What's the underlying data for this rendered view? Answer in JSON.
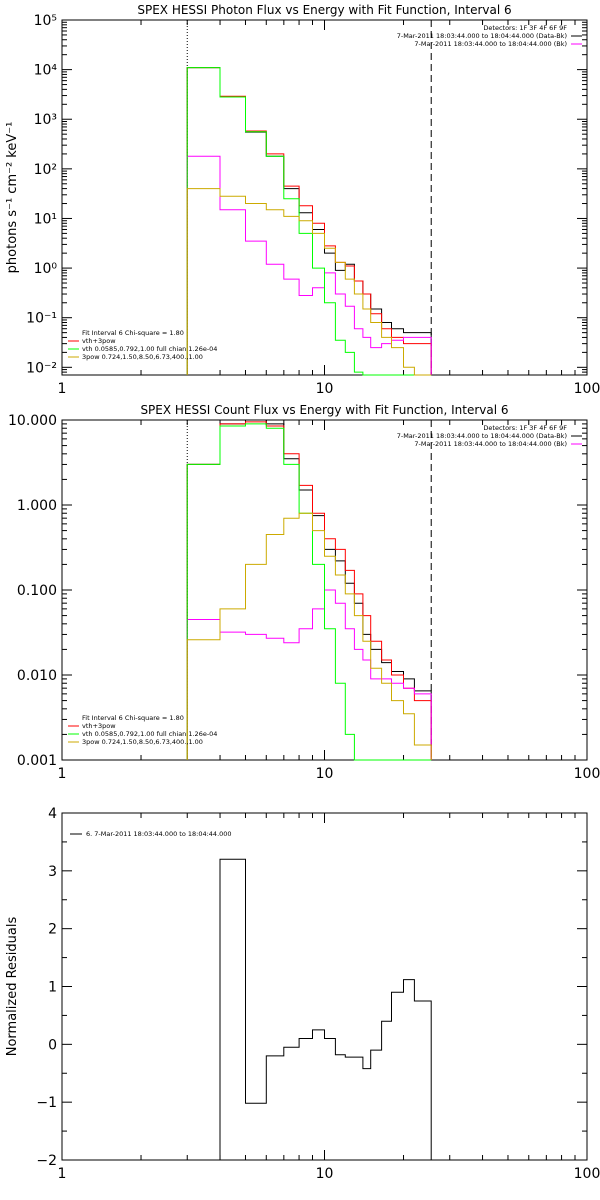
{
  "chart_data": [
    {
      "type": "line",
      "title": "SPEX HESSI Photon Flux vs Energy with Fit Function, Interval 6",
      "ylabel": "photons s⁻¹ cm⁻² keV⁻¹",
      "xlabel": "",
      "xscale": "log",
      "yscale": "log",
      "xlim": [
        1,
        100
      ],
      "ylim": [
        0.007,
        100000
      ],
      "xticks": [
        1,
        10,
        100
      ],
      "xtick_labels": [
        "1",
        "10",
        "100"
      ],
      "yticks": [
        0.01,
        0.1,
        1,
        10,
        100,
        1000,
        10000,
        100000
      ],
      "ytick_labels": [
        "10⁻²",
        "10⁻¹",
        "10⁰",
        "10¹",
        "10²",
        "10³",
        "10⁴",
        "10⁵"
      ],
      "vlines": [
        {
          "x": 3.0,
          "style": "dotted"
        },
        {
          "x": 25.5,
          "style": "dashed"
        }
      ],
      "legend_top": [
        "Detectors: 1F 3F 4F 6F 9F",
        "7-Mar-2011 18:03:44.000 to 18:04:44.000 (Data-Bk)",
        "7-Mar-2011 18:03:44.000 to 18:04:44.000 (Bk)"
      ],
      "legend_bottom": [
        "Fit Interval 6   Chi-square = 1.80",
        "vth+3pow",
        "vth 0.0585,0.792,1.00  full chian 1.26e-04",
        "3pow 0.724,1.50,8.50,6.73,400.,1.00"
      ],
      "edges": [
        3.0,
        4.0,
        5.0,
        6.0,
        7.0,
        8.0,
        9.0,
        10.0,
        11.0,
        12.0,
        13.0,
        14.0,
        15.0,
        16.5,
        18.0,
        20.0,
        22.0,
        25.5
      ],
      "series": [
        {
          "name": "7-Mar-2011 18:03:44.000 to 18:04:44.000 (Data-Bk)",
          "color": "#000000",
          "values": [
            11000,
            2800,
            550,
            180,
            40,
            13,
            6,
            2.0,
            0.9,
            1.2,
            0.55,
            0.3,
            0.15,
            0.08,
            0.06,
            0.05,
            0.05
          ]
        },
        {
          "name": "vth+3pow",
          "color": "#ff0000",
          "values": [
            11000,
            2900,
            580,
            200,
            45,
            18,
            8,
            2.8,
            1.3,
            1.1,
            0.55,
            0.3,
            0.12,
            0.06,
            0.04,
            0.03,
            0.03
          ]
        },
        {
          "name": "7-Mar-2011 18:03:44.000 to 18:04:44.000 (Bk)",
          "color": "#ff00ff",
          "values": [
            180,
            15,
            3.5,
            1.2,
            0.6,
            0.28,
            0.4,
            0.8,
            0.3,
            0.17,
            0.06,
            0.04,
            0.025,
            0.03,
            0.035,
            0.04,
            0.04
          ]
        },
        {
          "name": "vth 0.0585,0.792,1.00  full chian 1.26e-04",
          "color": "#00ff00",
          "values": [
            11000,
            2800,
            560,
            180,
            25,
            5,
            1.0,
            0.2,
            0.035,
            0.02,
            0.008,
            0.007,
            0.007,
            0.007,
            0.007,
            0.007,
            0.007
          ]
        },
        {
          "name": "3pow 0.724,1.50,8.50,6.73,400.,1.00",
          "color": "#ccaa00",
          "values": [
            40,
            28,
            20,
            15,
            11,
            9,
            5.0,
            2.5,
            1.3,
            0.6,
            0.3,
            0.15,
            0.08,
            0.04,
            0.025,
            0.01,
            0.007
          ]
        }
      ]
    },
    {
      "type": "line",
      "title": "SPEX HESSI Count Flux vs Energy with Fit Function, Interval 6",
      "ylabel": "",
      "xlabel": "",
      "xscale": "log",
      "yscale": "log",
      "xlim": [
        1,
        100
      ],
      "ylim": [
        0.001,
        10
      ],
      "xticks": [
        1,
        10,
        100
      ],
      "xtick_labels": [
        "1",
        "10",
        "100"
      ],
      "yticks": [
        0.001,
        0.01,
        0.1,
        1,
        10
      ],
      "ytick_labels": [
        "0.001",
        "0.010",
        "0.100",
        "1.000",
        "10.000"
      ],
      "vlines": [
        {
          "x": 3.0,
          "style": "dotted"
        },
        {
          "x": 25.5,
          "style": "dashed"
        }
      ],
      "legend_top": [
        "Detectors: 1F 3F 4F 6F 9F",
        "7-Mar-2011 18:03:44.000 to 18:04:44.000 (Data-Bk)",
        "7-Mar-2011 18:03:44.000 to 18:04:44.000 (Bk)"
      ],
      "legend_bottom": [
        "Fit Interval 6   Chi-square = 1.80",
        "vth+3pow",
        "vth 0.0585,0.792,1.00  full chian 1.26e-04",
        "3pow 0.724,1.50,8.50,6.73,400.,1.00"
      ],
      "edges": [
        3.0,
        4.0,
        5.0,
        6.0,
        7.0,
        8.0,
        9.0,
        10.0,
        11.0,
        12.0,
        13.0,
        14.0,
        15.0,
        16.5,
        18.0,
        20.0,
        22.0,
        25.5
      ],
      "series": [
        {
          "name": "7-Mar-2011 18:03:44.000 to 18:04:44.000 (Data-Bk)",
          "color": "#000000",
          "values": [
            3.0,
            9.0,
            10.0,
            9.0,
            3.5,
            1.5,
            0.75,
            0.3,
            0.22,
            0.12,
            0.07,
            0.03,
            0.02,
            0.014,
            0.011,
            0.009,
            0.0065
          ]
        },
        {
          "name": "vth+3pow",
          "color": "#ff0000",
          "values": [
            3.0,
            9.0,
            9.5,
            8.5,
            4.0,
            1.7,
            0.8,
            0.4,
            0.3,
            0.17,
            0.09,
            0.05,
            0.025,
            0.015,
            0.01,
            0.007,
            0.005
          ]
        },
        {
          "name": "7-Mar-2011 18:03:44.000 to 18:04:44.000 (Bk)",
          "color": "#ff00ff",
          "values": [
            0.045,
            0.032,
            0.03,
            0.027,
            0.024,
            0.035,
            0.06,
            0.1,
            0.07,
            0.035,
            0.02,
            0.015,
            0.009,
            0.009,
            0.008,
            0.007,
            0.006
          ]
        },
        {
          "name": "vth 0.0585,0.792,1.00  full chian 1.26e-04",
          "color": "#00ff00",
          "values": [
            3.0,
            8.5,
            9.0,
            8.0,
            3.0,
            0.8,
            0.2,
            0.035,
            0.008,
            0.002,
            0.001,
            0.001,
            0.001,
            0.001,
            0.001,
            0.001,
            0.001
          ]
        },
        {
          "name": "3pow 0.724,1.50,8.50,6.73,400.,1.00",
          "color": "#ccaa00",
          "values": [
            0.026,
            0.06,
            0.2,
            0.45,
            0.7,
            0.8,
            0.5,
            0.25,
            0.15,
            0.09,
            0.05,
            0.025,
            0.012,
            0.008,
            0.005,
            0.0035,
            0.0015
          ]
        }
      ]
    },
    {
      "type": "line",
      "title": "",
      "ylabel": "Normalized Residuals",
      "xlabel": "",
      "xscale": "log",
      "yscale": "linear",
      "xlim": [
        1,
        100
      ],
      "ylim": [
        -2,
        4
      ],
      "xticks": [
        1,
        10,
        100
      ],
      "xtick_labels": [
        "1",
        "10",
        "100"
      ],
      "yticks": [
        -2,
        -1,
        0,
        1,
        2,
        3,
        4
      ],
      "ytick_labels": [
        "−2",
        "−1",
        "0",
        "1",
        "2",
        "3",
        "4"
      ],
      "legend": "6. 7-Mar-2011 18:03:44.000 to 18:04:44.000",
      "edges": [
        3.0,
        4.0,
        5.0,
        6.0,
        7.0,
        8.0,
        9.0,
        10.0,
        11.0,
        12.0,
        13.0,
        14.0,
        15.0,
        16.5,
        18.0,
        20.0,
        22.0,
        25.5
      ],
      "series": [
        {
          "name": "6. 7-Mar-2011 18:03:44.000 to 18:04:44.000",
          "color": "#000000",
          "values": [
            -2.0,
            3.2,
            -1.02,
            -0.2,
            -0.05,
            0.1,
            0.25,
            0.1,
            -0.18,
            -0.22,
            -0.22,
            -0.42,
            -0.1,
            0.4,
            0.9,
            1.12,
            0.75
          ]
        }
      ]
    }
  ]
}
